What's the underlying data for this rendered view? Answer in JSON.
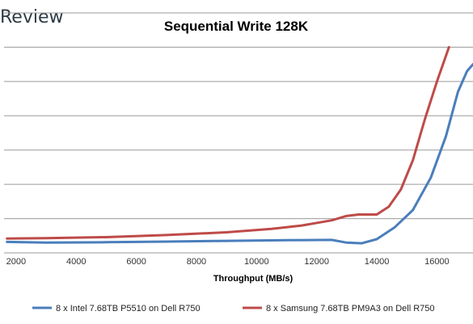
{
  "brand": {
    "text": "Review"
  },
  "chart_data": {
    "type": "line",
    "title": "Sequential Write 128K",
    "xlabel": "Throughput (MB/s)",
    "ylabel": "",
    "xlim": [
      1600,
      17200
    ],
    "ylim": [
      0,
      7
    ],
    "x_ticks": [
      "2000",
      "4000",
      "6000",
      "8000",
      "10000",
      "12000",
      "14000",
      "16000"
    ],
    "grid": true,
    "legend": "bottom",
    "series": [
      {
        "name": "8 x Intel 7.68TB P5510 on Dell R750",
        "color": "#4a7ebb",
        "x": [
          1700,
          3000,
          5000,
          7000,
          9000,
          11000,
          12500,
          13000,
          13500,
          14000,
          14600,
          15200,
          15800,
          16300,
          16700,
          17000,
          17200
        ],
        "y": [
          0.32,
          0.3,
          0.31,
          0.33,
          0.35,
          0.37,
          0.38,
          0.3,
          0.28,
          0.4,
          0.75,
          1.25,
          2.2,
          3.4,
          4.7,
          5.3,
          5.5
        ]
      },
      {
        "name": "8 x Samsung 7.68TB PM9A3 on Dell R750",
        "color": "#be4b48",
        "x": [
          1700,
          3000,
          5000,
          7000,
          9000,
          10500,
          11500,
          12500,
          13000,
          13400,
          14000,
          14400,
          14800,
          15200,
          15600,
          16000,
          16400
        ],
        "y": [
          0.42,
          0.43,
          0.46,
          0.52,
          0.6,
          0.7,
          0.8,
          0.95,
          1.08,
          1.12,
          1.12,
          1.35,
          1.85,
          2.7,
          3.9,
          5.0,
          6.0
        ]
      }
    ]
  }
}
